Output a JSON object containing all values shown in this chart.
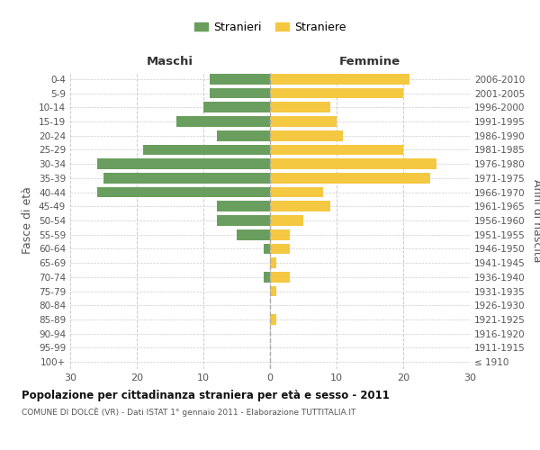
{
  "age_groups": [
    "100+",
    "95-99",
    "90-94",
    "85-89",
    "80-84",
    "75-79",
    "70-74",
    "65-69",
    "60-64",
    "55-59",
    "50-54",
    "45-49",
    "40-44",
    "35-39",
    "30-34",
    "25-29",
    "20-24",
    "15-19",
    "10-14",
    "5-9",
    "0-4"
  ],
  "birth_years": [
    "≤ 1910",
    "1911-1915",
    "1916-1920",
    "1921-1925",
    "1926-1930",
    "1931-1935",
    "1936-1940",
    "1941-1945",
    "1946-1950",
    "1951-1955",
    "1956-1960",
    "1961-1965",
    "1966-1970",
    "1971-1975",
    "1976-1980",
    "1981-1985",
    "1986-1990",
    "1991-1995",
    "1996-2000",
    "2001-2005",
    "2006-2010"
  ],
  "males": [
    0,
    0,
    0,
    0,
    0,
    0,
    1,
    0,
    1,
    5,
    8,
    8,
    26,
    25,
    26,
    19,
    8,
    14,
    10,
    9,
    9
  ],
  "females": [
    0,
    0,
    0,
    1,
    0,
    1,
    3,
    1,
    3,
    3,
    5,
    9,
    8,
    24,
    25,
    20,
    11,
    10,
    9,
    20,
    21
  ],
  "male_color": "#6a9e5e",
  "female_color": "#f5c842",
  "title": "Popolazione per cittadinanza straniera per età e sesso - 2011",
  "subtitle": "COMUNE DI DOLCÈ (VR) - Dati ISTAT 1° gennaio 2011 - Elaborazione TUTTITALIA.IT",
  "ylabel_left": "Fasce di età",
  "ylabel_right": "Anni di nascita",
  "xlabel_left": "Maschi",
  "xlabel_right": "Femmine",
  "legend_male": "Stranieri",
  "legend_female": "Straniere",
  "xlim": 30,
  "background_color": "#ffffff",
  "grid_color": "#cccccc"
}
